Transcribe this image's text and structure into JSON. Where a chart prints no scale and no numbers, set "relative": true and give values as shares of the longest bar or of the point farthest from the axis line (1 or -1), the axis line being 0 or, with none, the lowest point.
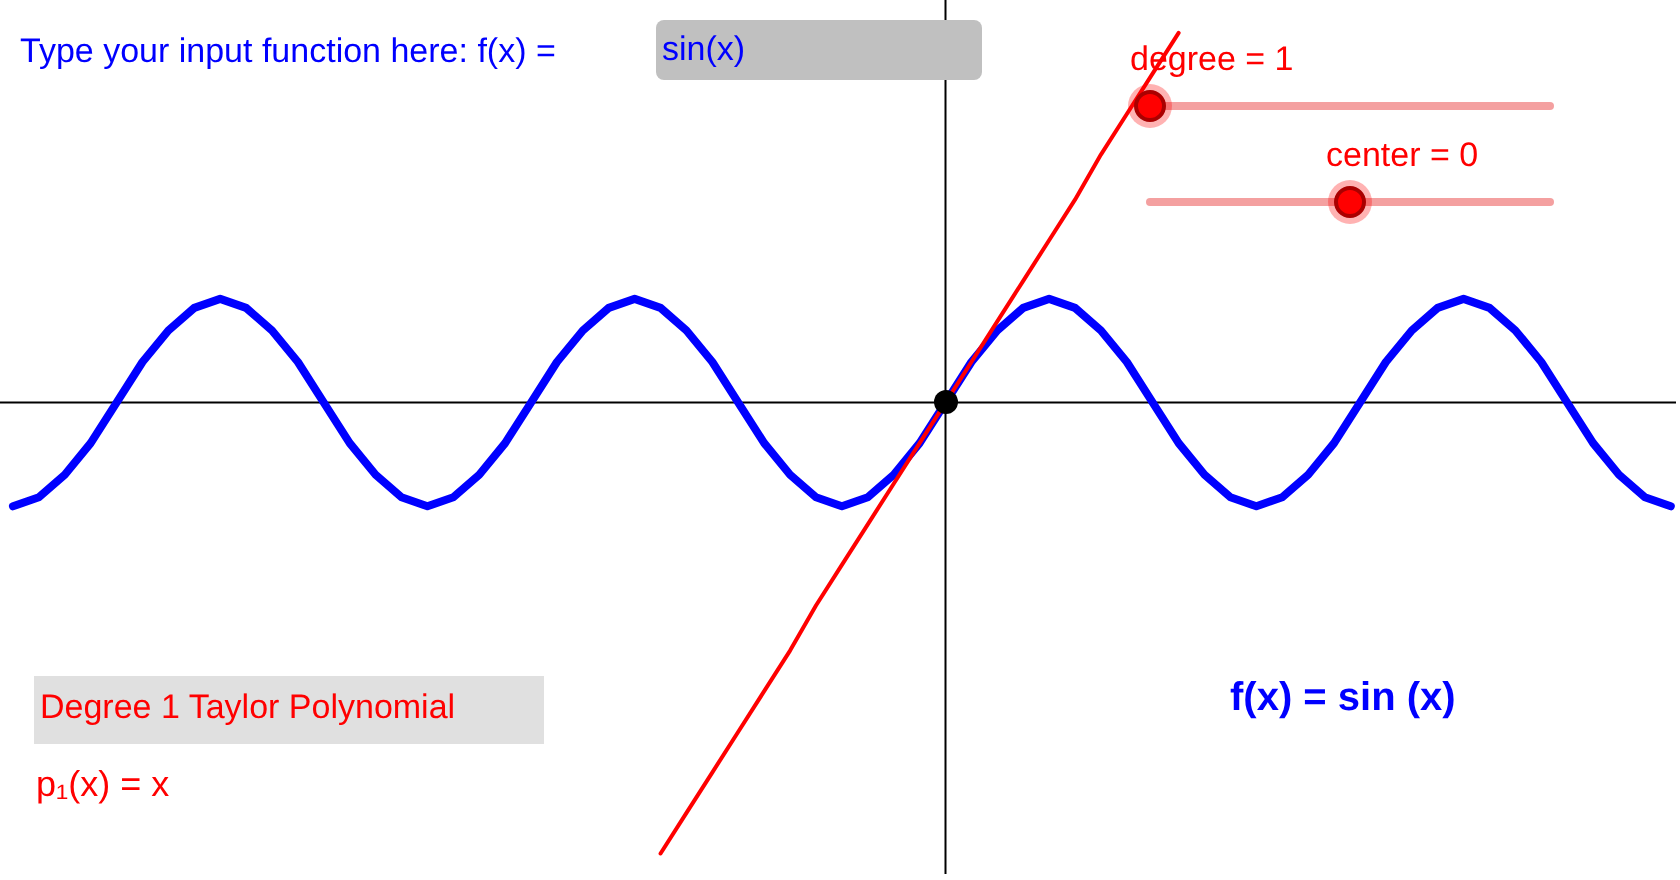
{
  "chart_data": {
    "type": "line",
    "relative": true,
    "marker": "none",
    "categories": [
      null,
      null,
      null,
      null,
      null,
      null,
      null,
      null,
      null,
      null,
      null,
      null,
      null,
      null,
      null,
      null,
      null,
      null,
      null,
      null,
      null,
      null,
      null,
      null,
      null,
      null,
      null,
      null,
      null,
      null,
      null,
      null,
      null,
      null,
      null,
      null,
      null,
      null,
      null,
      null,
      null,
      null,
      null,
      null,
      null,
      null,
      null,
      null,
      null,
      null,
      null,
      null,
      null,
      null,
      null,
      null,
      null,
      null,
      null,
      null,
      null,
      null,
      null,
      null,
      null
    ],
    "series": [
      {
        "name": "f(x) = sin (x)",
        "color": "#0000ff",
        "values": [
          -0.23,
          -0.21,
          -0.16,
          -0.09,
          0,
          0.09,
          0.16,
          0.21,
          0.23,
          0.21,
          0.16,
          0.09,
          0,
          -0.09,
          -0.16,
          -0.21,
          -0.23,
          -0.21,
          -0.16,
          -0.09,
          0,
          0.09,
          0.16,
          0.21,
          0.23,
          0.21,
          0.16,
          0.09,
          0,
          -0.09,
          -0.16,
          -0.21,
          -0.23,
          -0.21,
          -0.16,
          -0.09,
          0,
          0.09,
          0.16,
          0.21,
          0.23,
          0.21,
          0.16,
          0.09,
          0,
          -0.09,
          -0.16,
          -0.21,
          -0.23,
          -0.21,
          -0.16,
          -0.09,
          0,
          0.09,
          0.16,
          0.21,
          0.23,
          0.21,
          0.16,
          0.09,
          0,
          -0.09,
          -0.16,
          -0.21,
          -0.23
        ]
      },
      {
        "name": "p₁(x) = x",
        "color": "#ff0000",
        "values": [
          null,
          null,
          null,
          null,
          null,
          null,
          null,
          null,
          null,
          null,
          null,
          null,
          null,
          null,
          null,
          null,
          null,
          null,
          null,
          null,
          null,
          null,
          null,
          null,
          null,
          -1,
          -0.91,
          -0.82,
          -0.73,
          -0.64,
          -0.55,
          -0.45,
          -0.36,
          -0.27,
          -0.18,
          -0.09,
          0,
          0.09,
          0.18,
          0.27,
          0.36,
          0.45,
          0.55,
          0.64,
          0.73,
          0.82,
          null,
          null,
          null,
          null,
          null,
          null,
          null,
          null,
          null,
          null,
          null,
          null,
          null,
          null,
          null,
          null,
          null,
          null,
          null
        ]
      }
    ],
    "annotations": [
      "Type your input function here: f(x) =",
      "sin(x)",
      "degree = 1",
      "center = 0",
      "Degree 1  Taylor Polynomial"
    ]
  }
}
